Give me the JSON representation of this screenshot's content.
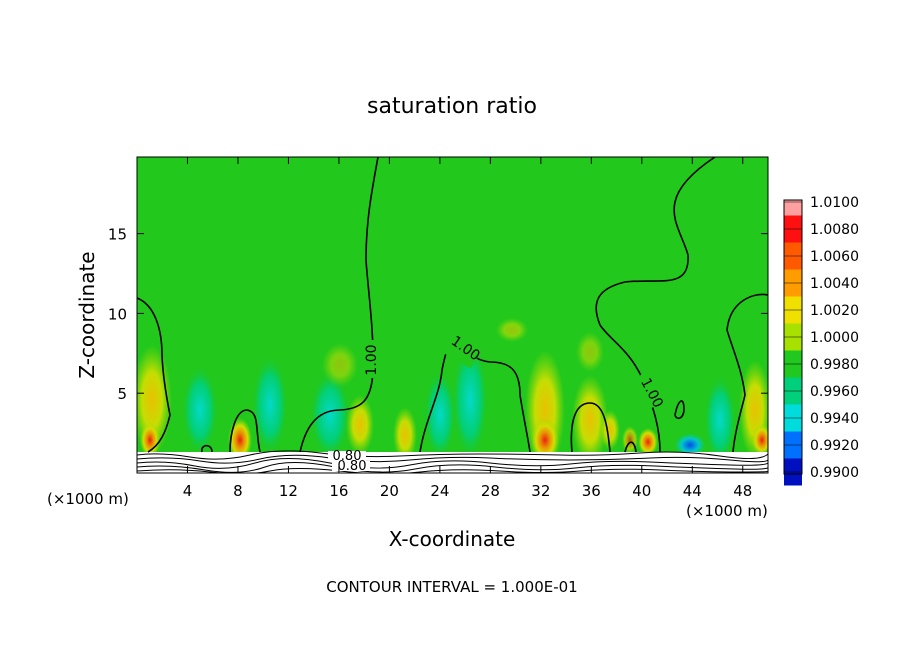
{
  "chart_data": {
    "type": "heatmap",
    "title": "saturation ratio",
    "xlabel": "X-coordinate",
    "ylabel": "Z-coordinate",
    "x_unit_left": "(×1000 m)",
    "x_unit_right": "(×1000 m)",
    "xlim": [
      0,
      50
    ],
    "ylim": [
      0,
      19.8
    ],
    "x_ticks": [
      4,
      8,
      12,
      16,
      20,
      24,
      28,
      32,
      36,
      40,
      44,
      48
    ],
    "x_tick_labels": [
      "4",
      "8",
      "12",
      "16",
      "20",
      "24",
      "28",
      "32",
      "36",
      "40",
      "44",
      "48"
    ],
    "y_ticks": [
      5,
      10,
      15
    ],
    "y_tick_labels": [
      "5",
      "10",
      "15"
    ],
    "grid": false,
    "colorbar": {
      "values": [
        1.01,
        1.008,
        1.006,
        1.004,
        1.002,
        1.0,
        0.998,
        0.996,
        0.994,
        0.992,
        0.99
      ],
      "labels": [
        "1.0100",
        "1.0080",
        "1.0060",
        "1.0040",
        "1.0020",
        "1.0000",
        "0.9980",
        "0.9960",
        "0.9940",
        "0.9920",
        "0.9900"
      ],
      "colors": [
        "#ffa0a0",
        "#ff1010",
        "#ff5a00",
        "#ff9c00",
        "#f0e000",
        "#a8e000",
        "#20c820",
        "#00d07c",
        "#00dcdc",
        "#0070ff",
        "#0010c0",
        "#7020a8"
      ]
    },
    "background_value": 1.0,
    "contour_labels": [
      {
        "text": "1.00",
        "x": 18.9,
        "z": 7.0
      },
      {
        "text": "1.00",
        "x": 25.2,
        "z": 7.8
      },
      {
        "text": "1.00",
        "x": 39.8,
        "z": 5.0
      },
      {
        "text": "0.80",
        "x": 16.5,
        "z": 1.05
      },
      {
        "text": "0.80",
        "x": 16.5,
        "z": 0.45
      }
    ],
    "contour_interval_text": "CONTOUR INTERVAL = 1.000E-01"
  }
}
